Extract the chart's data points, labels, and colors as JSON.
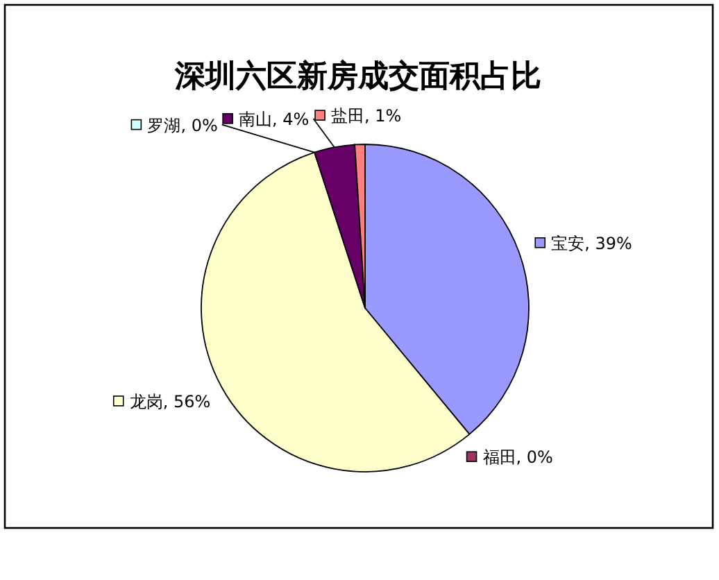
{
  "chart_data": {
    "type": "pie",
    "title": "深圳六区新房成交面积占比",
    "categories": [
      "宝安",
      "福田",
      "龙岗",
      "罗湖",
      "南山",
      "盐田"
    ],
    "values": [
      39,
      0,
      56,
      0,
      4,
      1
    ],
    "colors": [
      "#9999ff",
      "#993366",
      "#ffffcc",
      "#ccffff",
      "#660066",
      "#ff8080"
    ],
    "value_labels": [
      "39%",
      "0%",
      "56%",
      "0%",
      "4%",
      "1%"
    ],
    "legend": "center"
  }
}
